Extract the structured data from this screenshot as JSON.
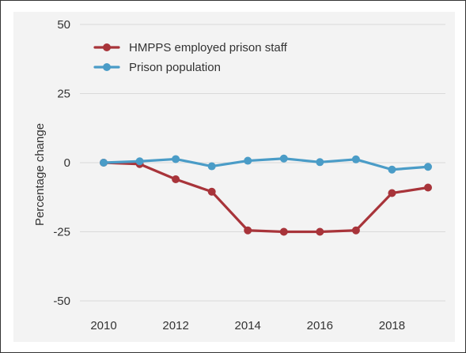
{
  "chart_data": {
    "type": "line",
    "title": "",
    "xlabel": "",
    "ylabel": "Percentage change",
    "x": [
      2010,
      2011,
      2012,
      2013,
      2014,
      2015,
      2016,
      2017,
      2018,
      2019
    ],
    "xticks": [
      "2010",
      "2012",
      "2014",
      "2016",
      "2018"
    ],
    "xlim": [
      2010,
      2019
    ],
    "ylim": [
      -50,
      50
    ],
    "yticks": [
      "50",
      "25",
      "0",
      "-25",
      "-50"
    ],
    "grid": true,
    "legend_position": "top-left",
    "series": [
      {
        "name": "HMPPS employed prison staff",
        "color": "#a8343a",
        "values": [
          0,
          -0.5,
          -6,
          -10.5,
          -24.5,
          -25,
          -25,
          -24.5,
          -11,
          -9
        ]
      },
      {
        "name": "Prison population",
        "color": "#4a9cc7",
        "values": [
          0,
          0.5,
          1.3,
          -1.3,
          0.7,
          1.5,
          0.2,
          1.2,
          -2.5,
          -1.5
        ]
      }
    ]
  }
}
